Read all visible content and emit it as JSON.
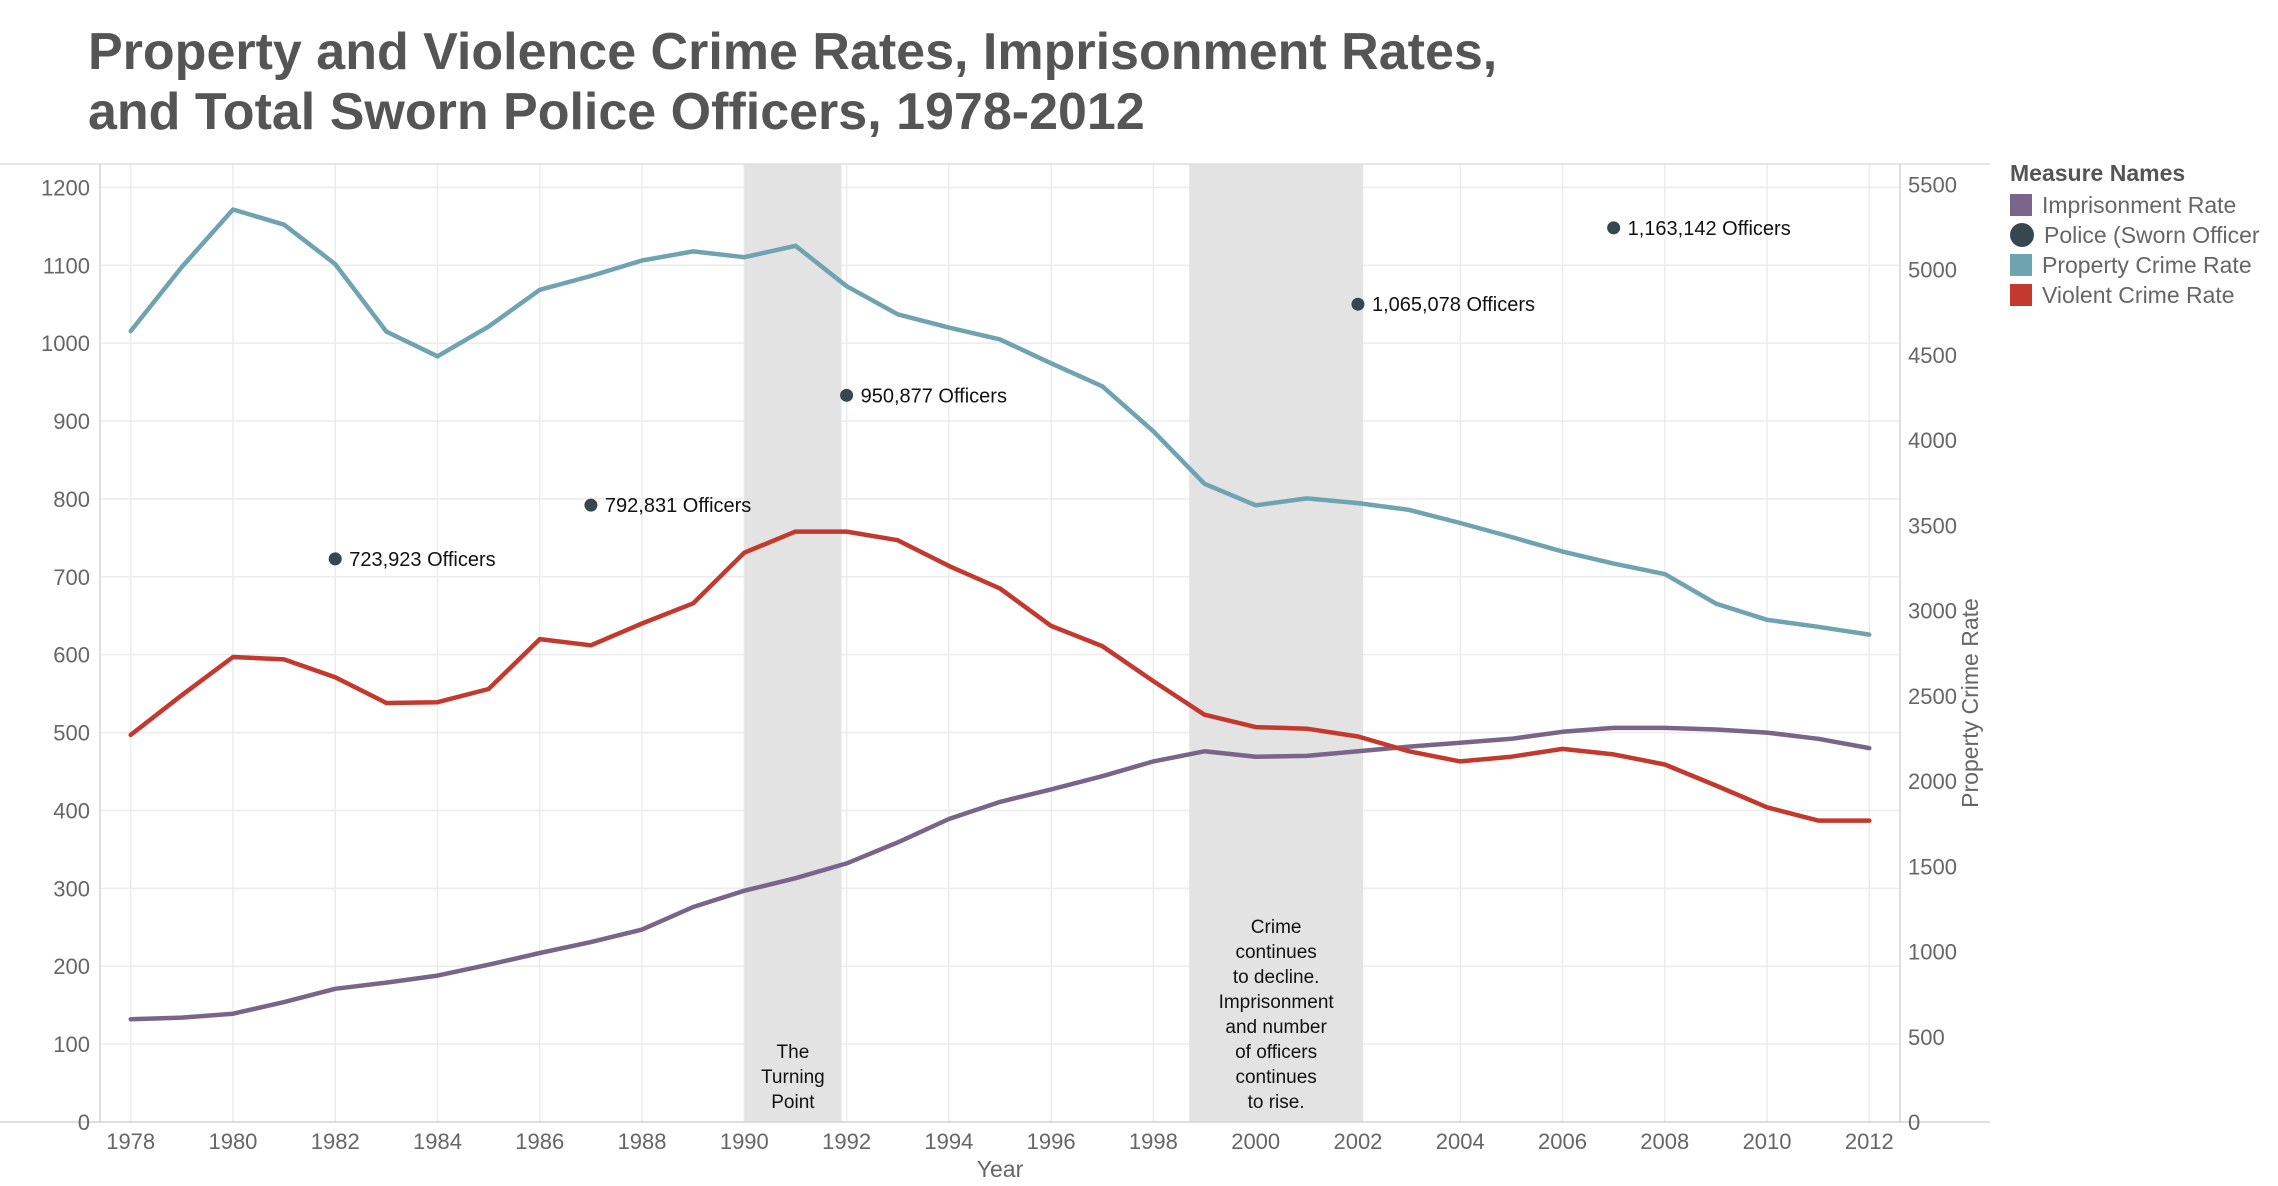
{
  "title": {
    "line1": "Property and Violence Crime Rates, Imprisonment Rates,",
    "line2": "and Total Sworn Police Officers, 1978-2012"
  },
  "legend": {
    "title": "Measure Names",
    "items": [
      {
        "label": "Imprisonment Rate",
        "color": "#7b6489",
        "shape": "square"
      },
      {
        "label": "Police (Sworn Officer",
        "color": "#37474f",
        "shape": "circle"
      },
      {
        "label": "Property Crime Rate",
        "color": "#6fa3b1",
        "shape": "square"
      },
      {
        "label": "Violent Crime Rate",
        "color": "#c4392d",
        "shape": "square"
      }
    ]
  },
  "chart_data": {
    "type": "line",
    "xlabel": "Year",
    "ylabel_left": "",
    "ylabel_right": "Property Crime Rate",
    "xlim": [
      1977.4,
      2012.6
    ],
    "ylim_left": [
      0,
      1230
    ],
    "ylim_right": [
      0,
      5620
    ],
    "x_ticks": [
      1978,
      1980,
      1982,
      1984,
      1986,
      1988,
      1990,
      1992,
      1994,
      1996,
      1998,
      2000,
      2002,
      2004,
      2006,
      2008,
      2010,
      2012
    ],
    "y_ticks_left": [
      0,
      100,
      200,
      300,
      400,
      500,
      600,
      700,
      800,
      900,
      1000,
      1100,
      1200
    ],
    "y_ticks_right": [
      0,
      500,
      1000,
      1500,
      2000,
      2500,
      3000,
      3500,
      4000,
      4500,
      5000,
      5500
    ],
    "grid": true,
    "legend_position": "right",
    "x": [
      1978,
      1979,
      1980,
      1981,
      1982,
      1983,
      1984,
      1985,
      1986,
      1987,
      1988,
      1989,
      1990,
      1991,
      1992,
      1993,
      1994,
      1995,
      1996,
      1997,
      1998,
      1999,
      2000,
      2001,
      2002,
      2003,
      2004,
      2005,
      2006,
      2007,
      2008,
      2009,
      2010,
      2011,
      2012
    ],
    "series": [
      {
        "name": "Imprisonment Rate",
        "axis": "left",
        "color": "#7b6489",
        "values": [
          132,
          134,
          139,
          154,
          171,
          179,
          188,
          202,
          217,
          231,
          247,
          276,
          297,
          313,
          332,
          359,
          389,
          411,
          427,
          444,
          463,
          476,
          469,
          470,
          476,
          482,
          487,
          492,
          501,
          506,
          506,
          504,
          500,
          492,
          480
        ]
      },
      {
        "name": "Violent Crime Rate",
        "axis": "left",
        "color": "#c4392d",
        "values": [
          497,
          548,
          597,
          594,
          571,
          538,
          539,
          556,
          620,
          612,
          640,
          666,
          731,
          758,
          758,
          747,
          714,
          685,
          637,
          611,
          566,
          523,
          507,
          505,
          495,
          476,
          463,
          469,
          479,
          472,
          459,
          432,
          404,
          387,
          387
        ]
      },
      {
        "name": "Property Crime Rate",
        "axis": "right",
        "color": "#6fa3b1",
        "values": [
          4640,
          5016,
          5353,
          5264,
          5033,
          4637,
          4492,
          4666,
          4882,
          4963,
          5054,
          5107,
          5073,
          5140,
          4903,
          4738,
          4660,
          4591,
          4451,
          4316,
          4052,
          3744,
          3618,
          3658,
          3631,
          3591,
          3514,
          3432,
          3346,
          3276,
          3214,
          3041,
          2946,
          2905,
          2859
        ]
      }
    ],
    "police_points": [
      {
        "year": 1982,
        "value": 723923,
        "label": "723,923 Officers",
        "y_left": 723
      },
      {
        "year": 1987,
        "value": 792831,
        "label": "792,831 Officers",
        "y_left": 792
      },
      {
        "year": 1992,
        "value": 950877,
        "label": "950,877 Officers",
        "y_left": 933
      },
      {
        "year": 2002,
        "value": 1065078,
        "label": "1,065,078 Officers",
        "y_left": 1050
      },
      {
        "year": 2007,
        "value": 1163142,
        "label": "1,163,142 Officers",
        "y_left": 1148
      }
    ],
    "bands": [
      {
        "from": 1990,
        "to": 1991.9,
        "label": "The\nTurning\nPoint"
      },
      {
        "from": 1998.7,
        "to": 2002.1,
        "label": "Crime\ncontinues\nto decline.\nImprisonment\nand number\nof officers\ncontinues\nto rise."
      }
    ]
  }
}
